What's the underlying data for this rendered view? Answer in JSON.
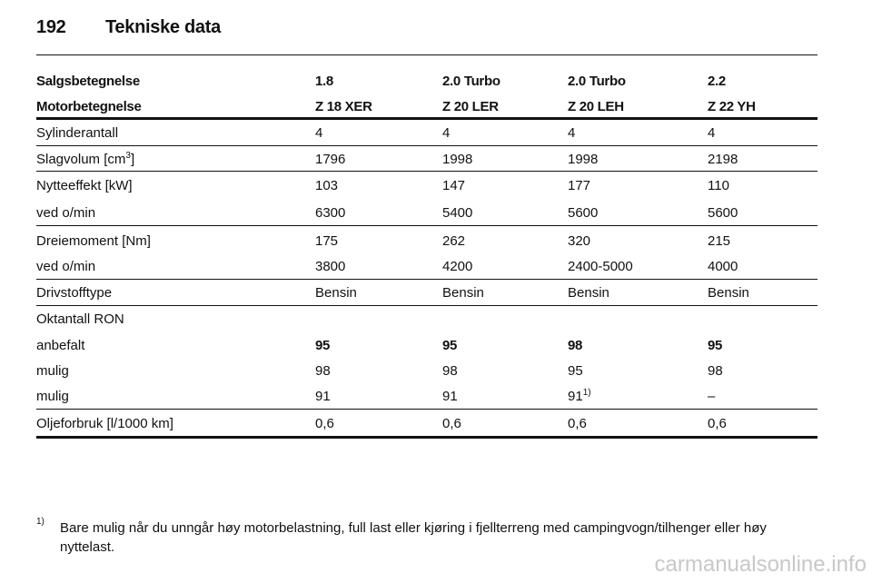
{
  "header": {
    "page_number": "192",
    "title": "Tekniske data"
  },
  "table": {
    "head": [
      [
        "Salgsbetegnelse",
        "1.8",
        "2.0 Turbo",
        "2.0 Turbo",
        "2.2"
      ],
      [
        "Motorbetegnelse",
        "Z 18 XER",
        "Z 20 LER",
        "Z 20 LEH",
        "Z 22 YH"
      ]
    ],
    "rows": [
      [
        "Sylinderantall",
        "4",
        "4",
        "4",
        "4"
      ],
      [
        {
          "text": "Slagvolum [cm",
          "sup": "3",
          "tail": "]"
        },
        "1796",
        "1998",
        "1998",
        "2198"
      ],
      [
        "Nytteeffekt [kW]",
        "103",
        "147",
        "177",
        "110"
      ],
      [
        "ved o/min",
        "6300",
        "5400",
        "5600",
        "5600"
      ],
      [
        "Dreiemoment [Nm]",
        "175",
        "262",
        "320",
        "215"
      ],
      [
        "ved o/min",
        "3800",
        "4200",
        "2400-5000",
        "4000"
      ],
      [
        "Drivstofftype",
        "Bensin",
        "Bensin",
        "Bensin",
        "Bensin"
      ],
      [
        "Oktantall RON"
      ],
      [
        "anbefalt",
        "95",
        "95",
        "98",
        "95"
      ],
      [
        "mulig",
        "98",
        "98",
        "95",
        "98"
      ],
      [
        "mulig",
        "91",
        "91",
        {
          "text": "91",
          "sup": "1)"
        },
        "–"
      ],
      [
        "Oljeforbruk [l/1000 km]",
        "0,6",
        "0,6",
        "0,6",
        "0,6"
      ]
    ]
  },
  "footnote": {
    "marker": "1)",
    "lines": [
      "Bare mulig når du unngår høy motorbelastning, full last eller kjøring i fjellterreng med campingvogn/tilhenger eller høy",
      "nyttelast."
    ]
  },
  "watermark": "carmanualsonline.info"
}
